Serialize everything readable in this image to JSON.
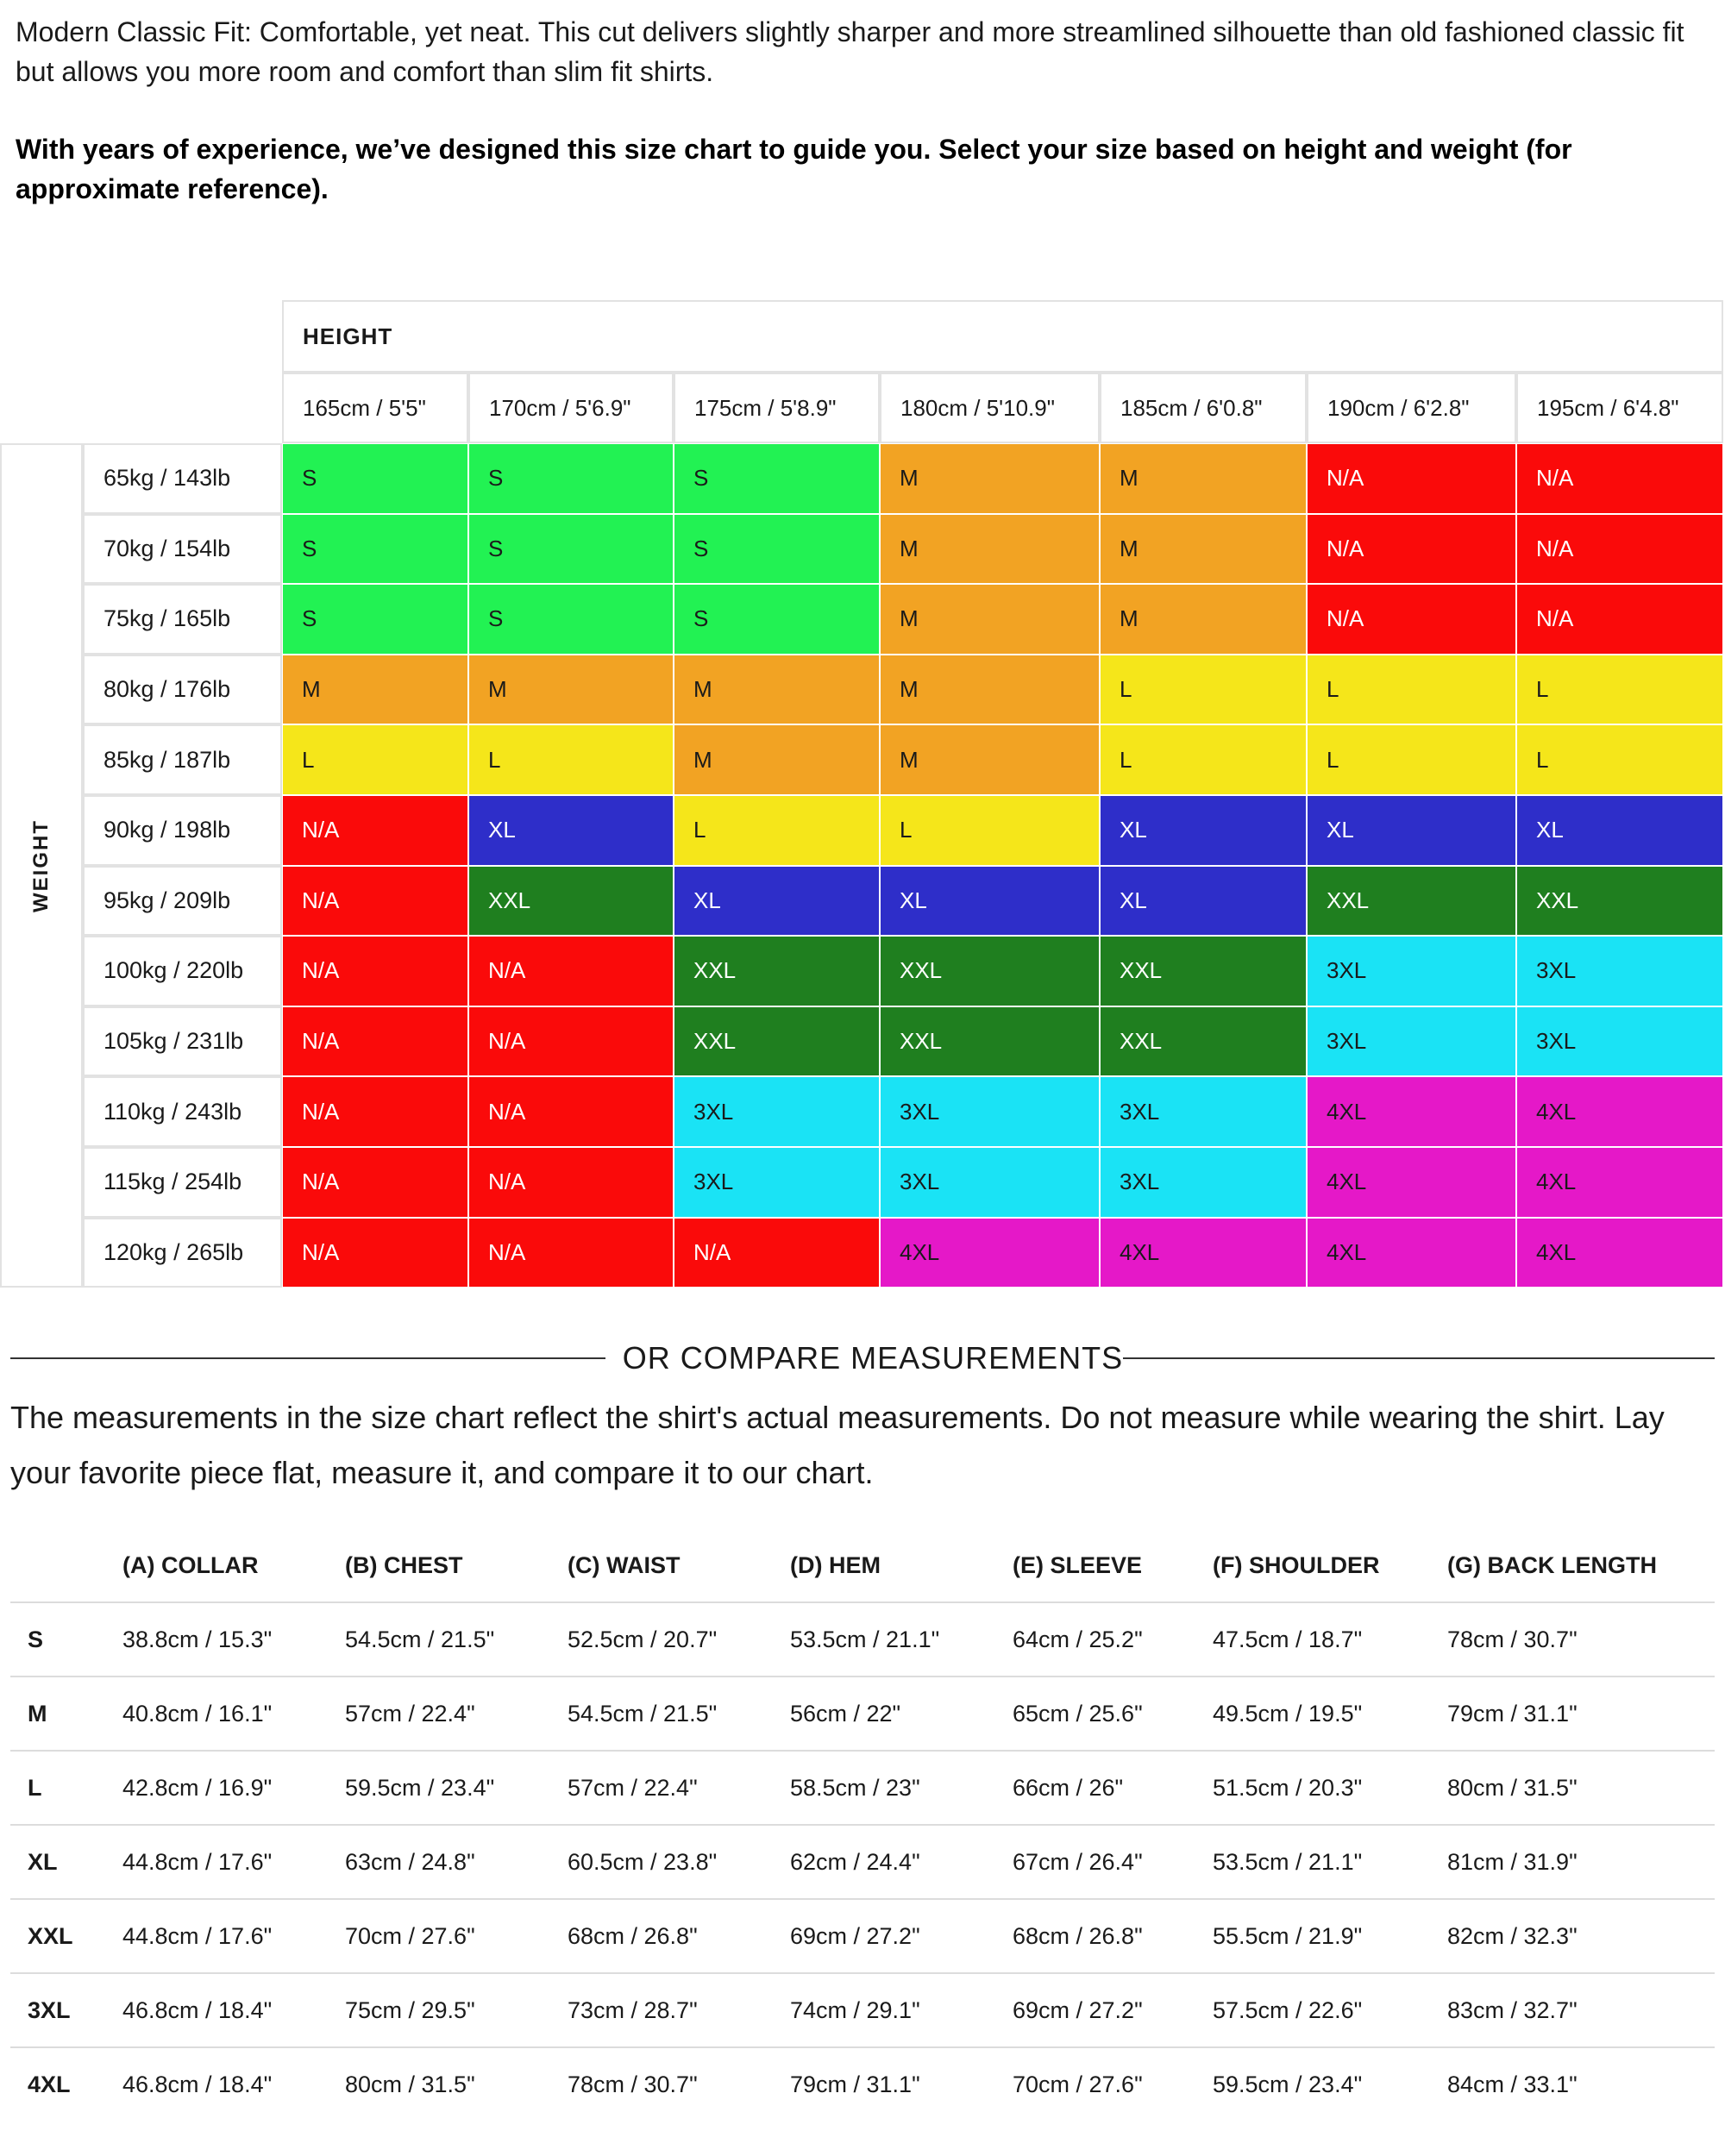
{
  "intro": {
    "fit_text": "Modern Classic Fit: Comfortable, yet neat. This cut delivers slightly sharper and more streamlined silhouette than old fashioned classic fit but allows you more room and comfort than slim fit shirts.",
    "guide_text": "With years of experience, we’ve designed this size chart to guide you. Select your size based on height and weight (for approximate reference)."
  },
  "size_grid": {
    "height_title": "HEIGHT",
    "weight_title": "WEIGHT",
    "heights": [
      "165cm / 5'5\"",
      "170cm / 5'6.9\"",
      "175cm / 5'8.9\"",
      "180cm / 5'10.9\"",
      "185cm / 6'0.8\"",
      "190cm / 6'2.8\"",
      "195cm / 6'4.8\""
    ],
    "weights": [
      "65kg / 143lb",
      "70kg / 154lb",
      "75kg / 165lb",
      "80kg / 176lb",
      "85kg / 187lb",
      "90kg / 198lb",
      "95kg / 209lb",
      "100kg / 220lb",
      "105kg / 231lb",
      "110kg / 243lb",
      "115kg / 254lb",
      "120kg / 265lb"
    ],
    "sizes": [
      [
        "S",
        "S",
        "S",
        "M",
        "M",
        "N/A",
        "N/A"
      ],
      [
        "S",
        "S",
        "S",
        "M",
        "M",
        "N/A",
        "N/A"
      ],
      [
        "S",
        "S",
        "S",
        "M",
        "M",
        "N/A",
        "N/A"
      ],
      [
        "M",
        "M",
        "M",
        "M",
        "L",
        "L",
        "L"
      ],
      [
        "L",
        "L",
        "M",
        "M",
        "L",
        "L",
        "L"
      ],
      [
        "N/A",
        "XL",
        "L",
        "L",
        "XL",
        "XL",
        "XL"
      ],
      [
        "N/A",
        "XXL",
        "XL",
        "XL",
        "XL",
        "XXL",
        "XXL"
      ],
      [
        "N/A",
        "N/A",
        "XXL",
        "XXL",
        "XXL",
        "3XL",
        "3XL"
      ],
      [
        "N/A",
        "N/A",
        "XXL",
        "XXL",
        "XXL",
        "3XL",
        "3XL"
      ],
      [
        "N/A",
        "N/A",
        "3XL",
        "3XL",
        "3XL",
        "4XL",
        "4XL"
      ],
      [
        "N/A",
        "N/A",
        "3XL",
        "3XL",
        "3XL",
        "4XL",
        "4XL"
      ],
      [
        "N/A",
        "N/A",
        "N/A",
        "4XL",
        "4XL",
        "4XL",
        "4XL"
      ]
    ],
    "size_colors": {
      "S": {
        "bg": "#22f253",
        "fg": "#1a1a1a"
      },
      "M": {
        "bg": "#f2a323",
        "fg": "#1a1a1a"
      },
      "L": {
        "bg": "#f5e61a",
        "fg": "#1a1a1a"
      },
      "XL": {
        "bg": "#2e2ec9",
        "fg": "#ffffff"
      },
      "XXL": {
        "bg": "#1f7f1f",
        "fg": "#ffffff"
      },
      "3XL": {
        "bg": "#1ae3f5",
        "fg": "#1a1a1a"
      },
      "4XL": {
        "bg": "#e518c8",
        "fg": "#1a1a1a"
      },
      "N/A": {
        "bg": "#fa0a0a",
        "fg": "#ffffff"
      }
    }
  },
  "divider_label": "OR COMPARE MEASUREMENTS",
  "compare_text": "The measurements in the size chart reflect the shirt's actual measurements. Do not measure while wearing the shirt. Lay your favorite piece flat, measure it, and compare it to our chart.",
  "measurements": {
    "columns": [
      "(A) COLLAR",
      "(B) CHEST",
      "(C) WAIST",
      "(D) HEM",
      "(E) SLEEVE",
      "(F) SHOULDER",
      "(G) BACK LENGTH"
    ],
    "rows": [
      {
        "size": "S",
        "values": [
          "38.8cm / 15.3\"",
          "54.5cm / 21.5\"",
          "52.5cm / 20.7\"",
          "53.5cm / 21.1\"",
          "64cm / 25.2\"",
          "47.5cm / 18.7\"",
          "78cm / 30.7\""
        ]
      },
      {
        "size": "M",
        "values": [
          "40.8cm / 16.1\"",
          "57cm / 22.4\"",
          "54.5cm / 21.5\"",
          "56cm / 22\"",
          "65cm / 25.6\"",
          "49.5cm / 19.5\"",
          "79cm / 31.1\""
        ]
      },
      {
        "size": "L",
        "values": [
          "42.8cm / 16.9\"",
          "59.5cm / 23.4\"",
          "57cm / 22.4\"",
          "58.5cm / 23\"",
          "66cm / 26\"",
          "51.5cm / 20.3\"",
          "80cm / 31.5\""
        ]
      },
      {
        "size": "XL",
        "values": [
          "44.8cm / 17.6\"",
          "63cm / 24.8\"",
          "60.5cm / 23.8\"",
          "62cm / 24.4\"",
          "67cm / 26.4\"",
          "53.5cm / 21.1\"",
          "81cm / 31.9\""
        ]
      },
      {
        "size": "XXL",
        "values": [
          "44.8cm / 17.6\"",
          "70cm / 27.6\"",
          "68cm / 26.8\"",
          "69cm / 27.2\"",
          "68cm / 26.8\"",
          "55.5cm / 21.9\"",
          "82cm / 32.3\""
        ]
      },
      {
        "size": "3XL",
        "values": [
          "46.8cm / 18.4\"",
          "75cm / 29.5\"",
          "73cm / 28.7\"",
          "74cm / 29.1\"",
          "69cm / 27.2\"",
          "57.5cm / 22.6\"",
          "83cm / 32.7\""
        ]
      },
      {
        "size": "4XL",
        "values": [
          "46.8cm / 18.4\"",
          "80cm / 31.5\"",
          "78cm / 30.7\"",
          "79cm / 31.1\"",
          "70cm / 27.6\"",
          "59.5cm / 23.4\"",
          "84cm / 33.1\""
        ]
      }
    ]
  }
}
